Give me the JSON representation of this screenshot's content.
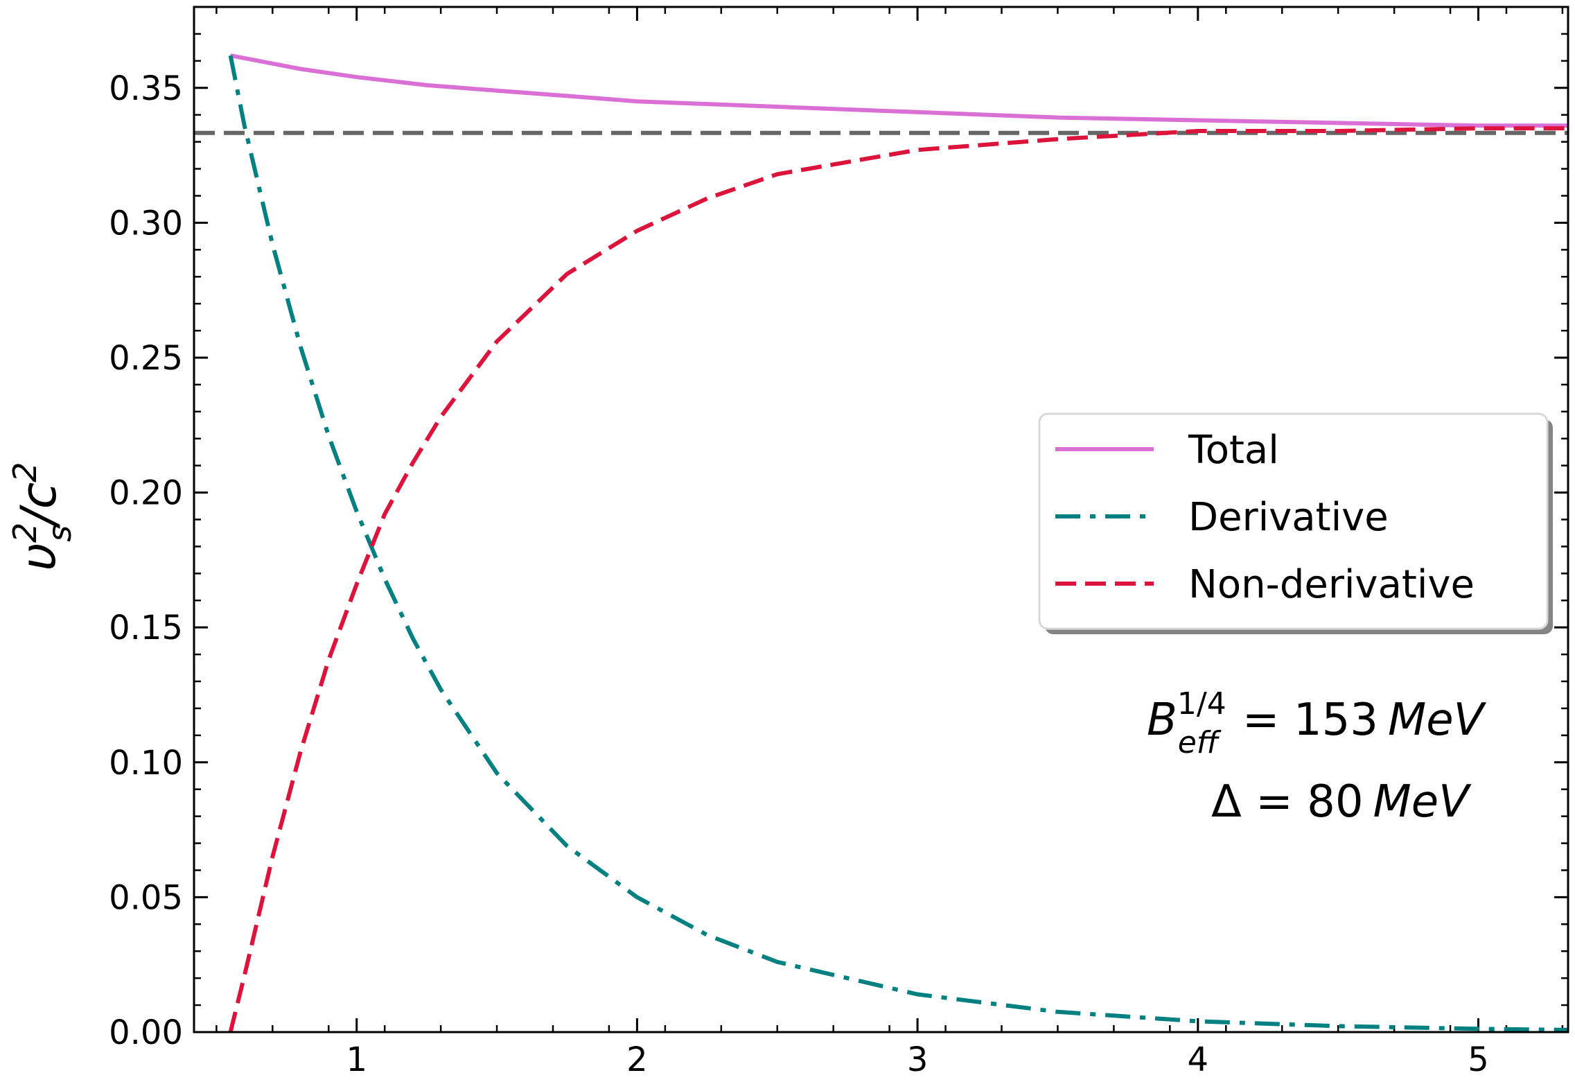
{
  "chart_data": {
    "type": "line",
    "title": "",
    "xlabel": "",
    "ylabel": "υ_s^2/c^2",
    "ylabel_parts": {
      "base": "υ",
      "sup1": "2",
      "sub1": "s",
      "sep": "/c",
      "sup2": "2"
    },
    "xlim": [
      0.42,
      5.32
    ],
    "ylim": [
      0.0,
      0.38
    ],
    "x_ticks": [
      1,
      2,
      3,
      4,
      5
    ],
    "x_tick_labels": [
      "1",
      "2",
      "3",
      "4",
      "5"
    ],
    "y_ticks": [
      0.0,
      0.05,
      0.1,
      0.15,
      0.2,
      0.25,
      0.3,
      0.35
    ],
    "y_tick_labels": [
      "0.00",
      "0.05",
      "0.10",
      "0.15",
      "0.20",
      "0.25",
      "0.30",
      "0.35"
    ],
    "grid": false,
    "legend_position": "center-right",
    "reference_line": {
      "y": 0.3333,
      "style": "dashed",
      "color": "#666666"
    },
    "series": [
      {
        "name": "Total",
        "style": "solid",
        "color": "#DA70D6",
        "x": [
          0.55,
          0.8,
          1.0,
          1.25,
          1.5,
          1.75,
          2.0,
          2.5,
          3.0,
          3.5,
          4.0,
          4.5,
          5.0,
          5.32
        ],
        "y": [
          0.362,
          0.357,
          0.354,
          0.351,
          0.349,
          0.347,
          0.345,
          0.343,
          0.341,
          0.339,
          0.338,
          0.337,
          0.336,
          0.336
        ]
      },
      {
        "name": "Derivative",
        "style": "dashdot",
        "color": "#008080",
        "x": [
          0.55,
          0.6,
          0.7,
          0.8,
          0.9,
          1.0,
          1.1,
          1.2,
          1.3,
          1.5,
          1.75,
          2.0,
          2.25,
          2.5,
          3.0,
          3.5,
          4.0,
          4.5,
          5.0,
          5.32
        ],
        "y": [
          0.362,
          0.336,
          0.292,
          0.254,
          0.221,
          0.193,
          0.168,
          0.146,
          0.127,
          0.096,
          0.069,
          0.05,
          0.036,
          0.026,
          0.014,
          0.0075,
          0.004,
          0.0022,
          0.0012,
          0.0008
        ]
      },
      {
        "name": "Non-derivative",
        "style": "dashed",
        "color": "#DC143C",
        "x": [
          0.55,
          0.6,
          0.7,
          0.8,
          0.9,
          1.0,
          1.1,
          1.2,
          1.3,
          1.5,
          1.75,
          2.0,
          2.25,
          2.5,
          3.0,
          3.5,
          4.0,
          4.5,
          5.0,
          5.32
        ],
        "y": [
          0.0,
          0.021,
          0.065,
          0.104,
          0.138,
          0.166,
          0.192,
          0.211,
          0.228,
          0.256,
          0.281,
          0.297,
          0.309,
          0.318,
          0.327,
          0.331,
          0.334,
          0.334,
          0.335,
          0.335
        ]
      }
    ],
    "annotation": {
      "line1": {
        "base": "B",
        "sup": "1/4",
        "sub": "eff",
        "eq": " = 153",
        "unit": "MeV"
      },
      "line2": {
        "base": "Δ = 80",
        "unit": "MeV"
      }
    }
  }
}
